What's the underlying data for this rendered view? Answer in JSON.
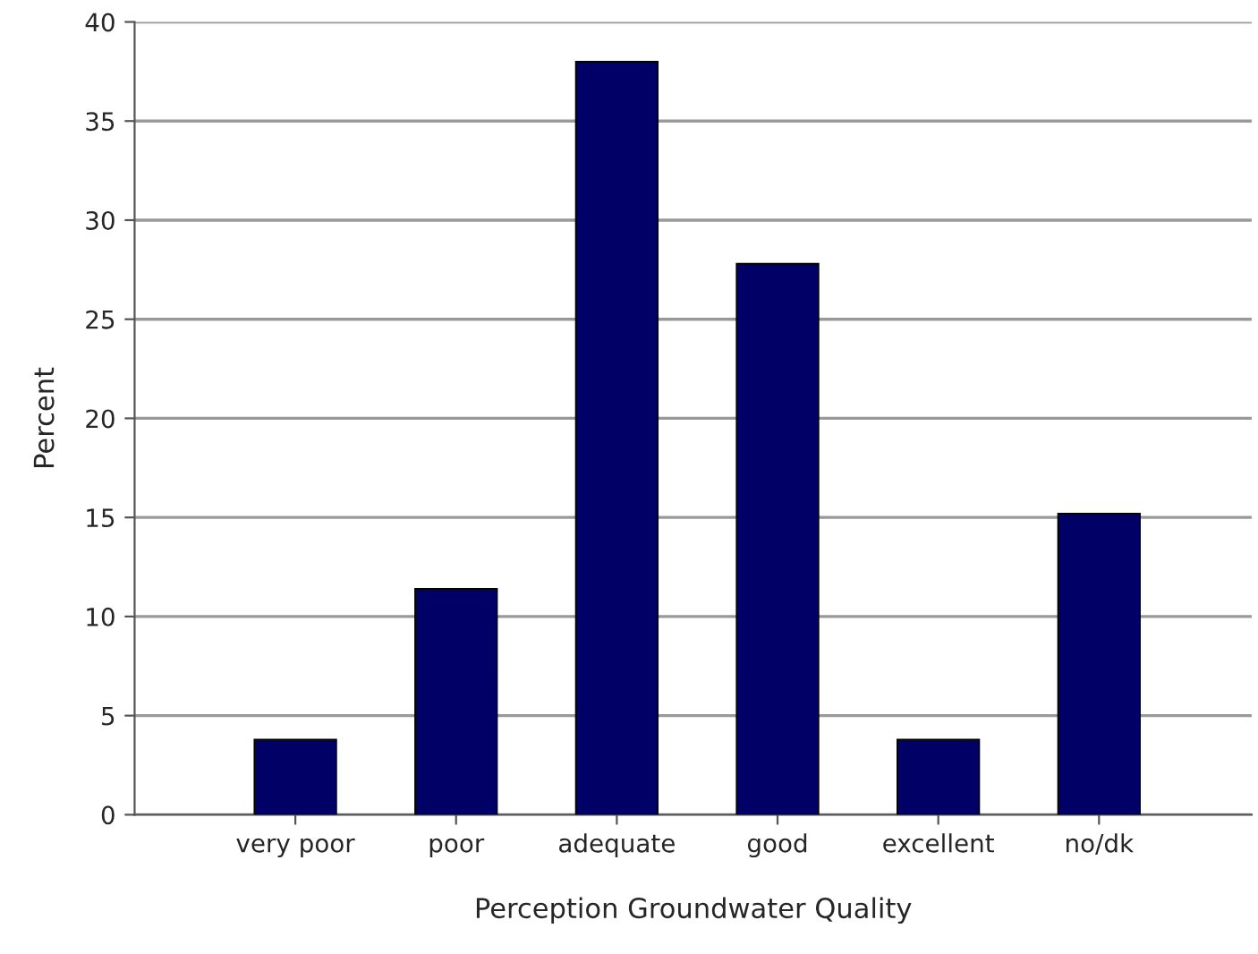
{
  "chart_data": {
    "type": "bar",
    "xlabel": "Perception Groundwater Quality",
    "ylabel": "Percent",
    "categories": [
      "very poor",
      "poor",
      "adequate",
      "good",
      "excellent",
      "no/dk"
    ],
    "values": [
      3.8,
      11.4,
      38.0,
      27.8,
      3.8,
      15.2
    ],
    "color": "#000066",
    "ylim": [
      0,
      40
    ],
    "yticks": [
      0,
      5,
      10,
      15,
      20,
      25,
      30,
      35,
      40
    ],
    "grid": "y",
    "legend": false
  }
}
